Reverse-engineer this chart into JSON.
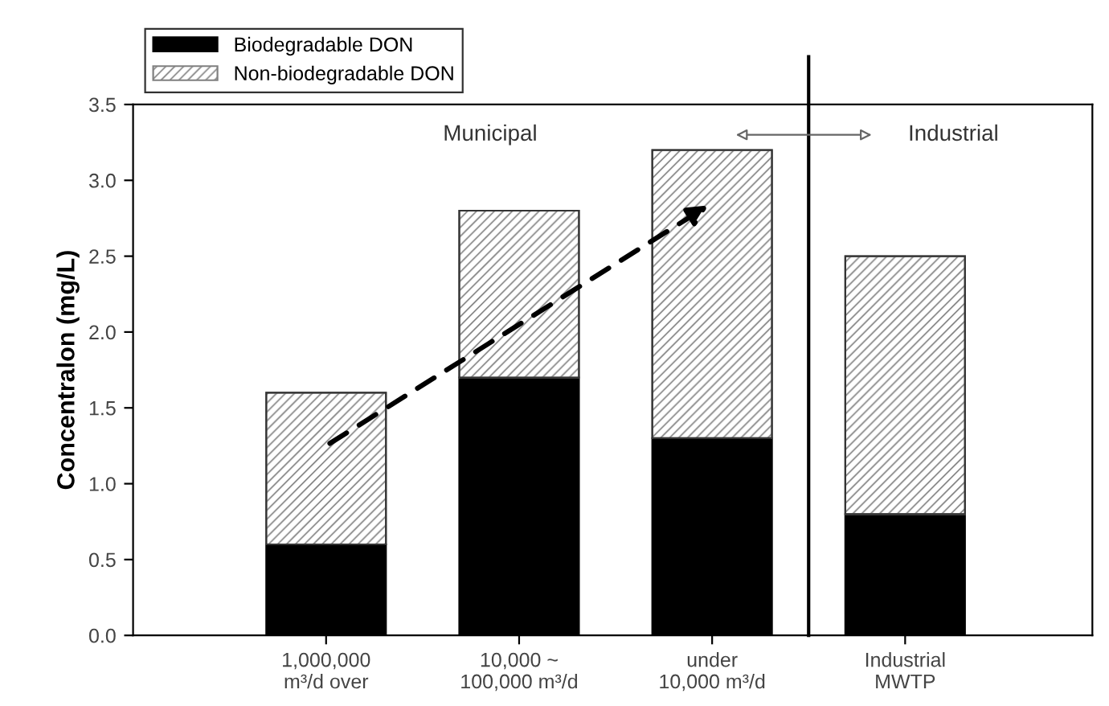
{
  "chart_data": {
    "type": "bar",
    "stacked": true,
    "ylabel": "Concentralon (mg/L)",
    "categories": [
      "1,000,000\nm³/d over",
      "10,000 ~\n100,000 m³/d",
      "under\n10,000 m³/d",
      "Industrial\nMWTP"
    ],
    "series": [
      {
        "name": "Biodegradable DON",
        "color": "#000000",
        "values": [
          0.6,
          1.7,
          1.3,
          0.8
        ]
      },
      {
        "name": "Non-biodegradable DON",
        "color": "#808080",
        "values": [
          1.0,
          1.1,
          1.9,
          1.7
        ]
      }
    ],
    "ylim": [
      0,
      3.5
    ],
    "yticks": [
      {
        "value": 0,
        "label": "0.0"
      },
      0.5,
      {
        "value": 1,
        "label": "1.0"
      },
      1.5,
      {
        "value": 2,
        "label": "2.0"
      },
      2.5,
      {
        "value": 3,
        "label": "3.0"
      },
      3.5
    ],
    "annotations": [
      "Municipal",
      "Industrial"
    ],
    "grid": false,
    "legend": "top left"
  }
}
